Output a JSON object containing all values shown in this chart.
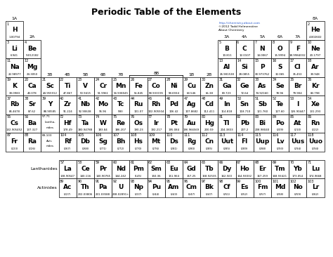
{
  "title": "Periodic Table of the Elements",
  "subtitle_line1": "http://chemistry.about.com",
  "subtitle_line2": "©2012 Todd Helmenstine",
  "subtitle_line3": "About Chemistry",
  "background_color": "#ffffff",
  "elements": [
    {
      "symbol": "H",
      "number": 1,
      "mass": "1.00794",
      "col": 1,
      "row": 1
    },
    {
      "symbol": "He",
      "number": 2,
      "mass": "4.002602",
      "col": 18,
      "row": 1
    },
    {
      "symbol": "Li",
      "number": 3,
      "mass": "6.941",
      "col": 1,
      "row": 2
    },
    {
      "symbol": "Be",
      "number": 4,
      "mass": "9.012182",
      "col": 2,
      "row": 2
    },
    {
      "symbol": "B",
      "number": 5,
      "mass": "10.811",
      "col": 13,
      "row": 2
    },
    {
      "symbol": "C",
      "number": 6,
      "mass": "12.0107",
      "col": 14,
      "row": 2
    },
    {
      "symbol": "N",
      "number": 7,
      "mass": "14.0067",
      "col": 15,
      "row": 2
    },
    {
      "symbol": "O",
      "number": 8,
      "mass": "15.9994",
      "col": 16,
      "row": 2
    },
    {
      "symbol": "F",
      "number": 9,
      "mass": "18.9984032",
      "col": 17,
      "row": 2
    },
    {
      "symbol": "Ne",
      "number": 10,
      "mass": "20.1797",
      "col": 18,
      "row": 2
    },
    {
      "symbol": "Na",
      "number": 11,
      "mass": "22.98977",
      "col": 1,
      "row": 3
    },
    {
      "symbol": "Mg",
      "number": 12,
      "mass": "24.3050",
      "col": 2,
      "row": 3
    },
    {
      "symbol": "Al",
      "number": 13,
      "mass": "26.981538",
      "col": 13,
      "row": 3
    },
    {
      "symbol": "Si",
      "number": 14,
      "mass": "28.0855",
      "col": 14,
      "row": 3
    },
    {
      "symbol": "P",
      "number": 15,
      "mass": "30.973762",
      "col": 15,
      "row": 3
    },
    {
      "symbol": "S",
      "number": 16,
      "mass": "32.065",
      "col": 16,
      "row": 3
    },
    {
      "symbol": "Cl",
      "number": 17,
      "mass": "35.453",
      "col": 17,
      "row": 3
    },
    {
      "symbol": "Ar",
      "number": 18,
      "mass": "39.948",
      "col": 18,
      "row": 3
    },
    {
      "symbol": "K",
      "number": 19,
      "mass": "39.0983",
      "col": 1,
      "row": 4
    },
    {
      "symbol": "Ca",
      "number": 20,
      "mass": "40.078",
      "col": 2,
      "row": 4
    },
    {
      "symbol": "Sc",
      "number": 21,
      "mass": "44.955912",
      "col": 3,
      "row": 4
    },
    {
      "symbol": "Ti",
      "number": 22,
      "mass": "47.867",
      "col": 4,
      "row": 4
    },
    {
      "symbol": "V",
      "number": 23,
      "mass": "50.9415",
      "col": 5,
      "row": 4
    },
    {
      "symbol": "Cr",
      "number": 24,
      "mass": "51.9961",
      "col": 6,
      "row": 4
    },
    {
      "symbol": "Mn",
      "number": 25,
      "mass": "54.938045",
      "col": 7,
      "row": 4
    },
    {
      "symbol": "Fe",
      "number": 26,
      "mass": "55.845",
      "col": 8,
      "row": 4
    },
    {
      "symbol": "Co",
      "number": 27,
      "mass": "58.933195",
      "col": 9,
      "row": 4
    },
    {
      "symbol": "Ni",
      "number": 28,
      "mass": "58.6934",
      "col": 10,
      "row": 4
    },
    {
      "symbol": "Cu",
      "number": 29,
      "mass": "63.546",
      "col": 11,
      "row": 4
    },
    {
      "symbol": "Zn",
      "number": 30,
      "mass": "65.38",
      "col": 12,
      "row": 4
    },
    {
      "symbol": "Ga",
      "number": 31,
      "mass": "69.723",
      "col": 13,
      "row": 4
    },
    {
      "symbol": "Ge",
      "number": 32,
      "mass": "72.64",
      "col": 14,
      "row": 4
    },
    {
      "symbol": "As",
      "number": 33,
      "mass": "74.92160",
      "col": 15,
      "row": 4
    },
    {
      "symbol": "Se",
      "number": 34,
      "mass": "78.96",
      "col": 16,
      "row": 4
    },
    {
      "symbol": "Br",
      "number": 35,
      "mass": "79.904",
      "col": 17,
      "row": 4
    },
    {
      "symbol": "Kr",
      "number": 36,
      "mass": "83.798",
      "col": 18,
      "row": 4
    },
    {
      "symbol": "Rb",
      "number": 37,
      "mass": "85.4678",
      "col": 1,
      "row": 5
    },
    {
      "symbol": "Sr",
      "number": 38,
      "mass": "87.62",
      "col": 2,
      "row": 5
    },
    {
      "symbol": "Y",
      "number": 39,
      "mass": "88.90585",
      "col": 3,
      "row": 5
    },
    {
      "symbol": "Zr",
      "number": 40,
      "mass": "91.224",
      "col": 4,
      "row": 5
    },
    {
      "symbol": "Nb",
      "number": 41,
      "mass": "92.90638",
      "col": 5,
      "row": 5
    },
    {
      "symbol": "Mo",
      "number": 42,
      "mass": "95.96",
      "col": 6,
      "row": 5
    },
    {
      "symbol": "Tc",
      "number": 43,
      "mass": "(98)",
      "col": 7,
      "row": 5
    },
    {
      "symbol": "Ru",
      "number": 44,
      "mass": "101.07",
      "col": 8,
      "row": 5
    },
    {
      "symbol": "Rh",
      "number": 45,
      "mass": "102.905504",
      "col": 9,
      "row": 5
    },
    {
      "symbol": "Pd",
      "number": 46,
      "mass": "106.42",
      "col": 10,
      "row": 5
    },
    {
      "symbol": "Ag",
      "number": 47,
      "mass": "107.8682",
      "col": 11,
      "row": 5
    },
    {
      "symbol": "Cd",
      "number": 48,
      "mass": "112.411",
      "col": 12,
      "row": 5
    },
    {
      "symbol": "In",
      "number": 49,
      "mass": "114.818",
      "col": 13,
      "row": 5
    },
    {
      "symbol": "Sn",
      "number": 50,
      "mass": "118.710",
      "col": 14,
      "row": 5
    },
    {
      "symbol": "Sb",
      "number": 51,
      "mass": "121.760",
      "col": 15,
      "row": 5
    },
    {
      "symbol": "Te",
      "number": 52,
      "mass": "127.60",
      "col": 16,
      "row": 5
    },
    {
      "symbol": "I",
      "number": 53,
      "mass": "126.90447",
      "col": 17,
      "row": 5
    },
    {
      "symbol": "Xe",
      "number": 54,
      "mass": "131.293",
      "col": 18,
      "row": 5
    },
    {
      "symbol": "Cs",
      "number": 55,
      "mass": "132.905452",
      "col": 1,
      "row": 6
    },
    {
      "symbol": "Ba",
      "number": 56,
      "mass": "137.327",
      "col": 2,
      "row": 6
    },
    {
      "symbol": "Hf",
      "number": 72,
      "mass": "178.49",
      "col": 4,
      "row": 6
    },
    {
      "symbol": "Ta",
      "number": 73,
      "mass": "180.94788",
      "col": 5,
      "row": 6
    },
    {
      "symbol": "W",
      "number": 74,
      "mass": "183.84",
      "col": 6,
      "row": 6
    },
    {
      "symbol": "Re",
      "number": 75,
      "mass": "186.207",
      "col": 7,
      "row": 6
    },
    {
      "symbol": "Os",
      "number": 76,
      "mass": "190.23",
      "col": 8,
      "row": 6
    },
    {
      "symbol": "Ir",
      "number": 77,
      "mass": "192.217",
      "col": 9,
      "row": 6
    },
    {
      "symbol": "Pt",
      "number": 78,
      "mass": "195.084",
      "col": 10,
      "row": 6
    },
    {
      "symbol": "Au",
      "number": 79,
      "mass": "196.966569",
      "col": 11,
      "row": 6
    },
    {
      "symbol": "Hg",
      "number": 80,
      "mass": "200.59",
      "col": 12,
      "row": 6
    },
    {
      "symbol": "Tl",
      "number": 81,
      "mass": "204.3833",
      "col": 13,
      "row": 6
    },
    {
      "symbol": "Pb",
      "number": 82,
      "mass": "207.2",
      "col": 14,
      "row": 6
    },
    {
      "symbol": "Bi",
      "number": 83,
      "mass": "208.98040",
      "col": 15,
      "row": 6
    },
    {
      "symbol": "Po",
      "number": 84,
      "mass": "(209)",
      "col": 16,
      "row": 6
    },
    {
      "symbol": "At",
      "number": 85,
      "mass": "(210)",
      "col": 17,
      "row": 6
    },
    {
      "symbol": "Rn",
      "number": 86,
      "mass": "(222)",
      "col": 18,
      "row": 6
    },
    {
      "symbol": "Fr",
      "number": 87,
      "mass": "(223)",
      "col": 1,
      "row": 7
    },
    {
      "symbol": "Ra",
      "number": 88,
      "mass": "(226)",
      "col": 2,
      "row": 7
    },
    {
      "symbol": "Rf",
      "number": 104,
      "mass": "(267)",
      "col": 4,
      "row": 7
    },
    {
      "symbol": "Db",
      "number": 105,
      "mass": "(268)",
      "col": 5,
      "row": 7
    },
    {
      "symbol": "Sg",
      "number": 106,
      "mass": "(271)",
      "col": 6,
      "row": 7
    },
    {
      "symbol": "Bh",
      "number": 107,
      "mass": "(272)",
      "col": 7,
      "row": 7
    },
    {
      "symbol": "Hs",
      "number": 108,
      "mass": "(270)",
      "col": 8,
      "row": 7
    },
    {
      "symbol": "Mt",
      "number": 109,
      "mass": "(276)",
      "col": 9,
      "row": 7
    },
    {
      "symbol": "Ds",
      "number": 110,
      "mass": "(281)",
      "col": 10,
      "row": 7
    },
    {
      "symbol": "Rg",
      "number": 111,
      "mass": "(280)",
      "col": 11,
      "row": 7
    },
    {
      "symbol": "Cn",
      "number": 112,
      "mass": "(285)",
      "col": 12,
      "row": 7
    },
    {
      "symbol": "Uut",
      "number": 113,
      "mass": "(285)",
      "col": 13,
      "row": 7
    },
    {
      "symbol": "Fl",
      "number": 114,
      "mass": "(289)",
      "col": 14,
      "row": 7
    },
    {
      "symbol": "Uup",
      "number": 115,
      "mass": "(288)",
      "col": 15,
      "row": 7
    },
    {
      "symbol": "Lv",
      "number": 116,
      "mass": "(293)",
      "col": 16,
      "row": 7
    },
    {
      "symbol": "Uus",
      "number": 117,
      "mass": "(294)",
      "col": 17,
      "row": 7
    },
    {
      "symbol": "Uuo",
      "number": 118,
      "mass": "(294)",
      "col": 18,
      "row": 7
    },
    {
      "symbol": "La",
      "number": 57,
      "mass": "138.90547",
      "col": 4,
      "row": 9
    },
    {
      "symbol": "Ce",
      "number": 58,
      "mass": "140.116",
      "col": 5,
      "row": 9
    },
    {
      "symbol": "Pr",
      "number": 59,
      "mass": "140.90765",
      "col": 6,
      "row": 9
    },
    {
      "symbol": "Nd",
      "number": 60,
      "mass": "144.242",
      "col": 7,
      "row": 9
    },
    {
      "symbol": "Pm",
      "number": 61,
      "mass": "(145)",
      "col": 8,
      "row": 9
    },
    {
      "symbol": "Sm",
      "number": 62,
      "mass": "150.36",
      "col": 9,
      "row": 9
    },
    {
      "symbol": "Eu",
      "number": 63,
      "mass": "151.964",
      "col": 10,
      "row": 9
    },
    {
      "symbol": "Gd",
      "number": 64,
      "mass": "157.25",
      "col": 11,
      "row": 9
    },
    {
      "symbol": "Tb",
      "number": 65,
      "mass": "158.92535",
      "col": 12,
      "row": 9
    },
    {
      "symbol": "Dy",
      "number": 66,
      "mass": "162.500",
      "col": 13,
      "row": 9
    },
    {
      "symbol": "Ho",
      "number": 67,
      "mass": "164.93032",
      "col": 14,
      "row": 9
    },
    {
      "symbol": "Er",
      "number": 68,
      "mass": "167.259",
      "col": 15,
      "row": 9
    },
    {
      "symbol": "Tm",
      "number": 69,
      "mass": "168.93421",
      "col": 16,
      "row": 9
    },
    {
      "symbol": "Yb",
      "number": 70,
      "mass": "173.054",
      "col": 17,
      "row": 9
    },
    {
      "symbol": "Lu",
      "number": 71,
      "mass": "174.9668",
      "col": 18,
      "row": 9
    },
    {
      "symbol": "Ac",
      "number": 89,
      "mass": "(227)",
      "col": 4,
      "row": 10
    },
    {
      "symbol": "Th",
      "number": 90,
      "mass": "232.03806",
      "col": 5,
      "row": 10
    },
    {
      "symbol": "Pa",
      "number": 91,
      "mass": "231.03588",
      "col": 6,
      "row": 10
    },
    {
      "symbol": "U",
      "number": 92,
      "mass": "238.02891+",
      "col": 7,
      "row": 10
    },
    {
      "symbol": "Np",
      "number": 93,
      "mass": "(237)",
      "col": 8,
      "row": 10
    },
    {
      "symbol": "Pu",
      "number": 94,
      "mass": "(244)",
      "col": 9,
      "row": 10
    },
    {
      "symbol": "Am",
      "number": 95,
      "mass": "(243)",
      "col": 10,
      "row": 10
    },
    {
      "symbol": "Cm",
      "number": 96,
      "mass": "(247)",
      "col": 11,
      "row": 10
    },
    {
      "symbol": "Bk",
      "number": 97,
      "mass": "(247)",
      "col": 12,
      "row": 10
    },
    {
      "symbol": "Cf",
      "number": 98,
      "mass": "(251)",
      "col": 13,
      "row": 10
    },
    {
      "symbol": "Es",
      "number": 99,
      "mass": "(252)",
      "col": 14,
      "row": 10
    },
    {
      "symbol": "Fm",
      "number": 100,
      "mass": "(257)",
      "col": 15,
      "row": 10
    },
    {
      "symbol": "Md",
      "number": 101,
      "mass": "(258)",
      "col": 16,
      "row": 10
    },
    {
      "symbol": "No",
      "number": 102,
      "mass": "(259)",
      "col": 17,
      "row": 10
    },
    {
      "symbol": "Lr",
      "number": 103,
      "mass": "(262)",
      "col": 18,
      "row": 10
    }
  ],
  "la_number_range": "57-71",
  "ac_number_range": "89-103",
  "lanthanide_label": "Lanthanides",
  "actinide_label": "Actinides"
}
